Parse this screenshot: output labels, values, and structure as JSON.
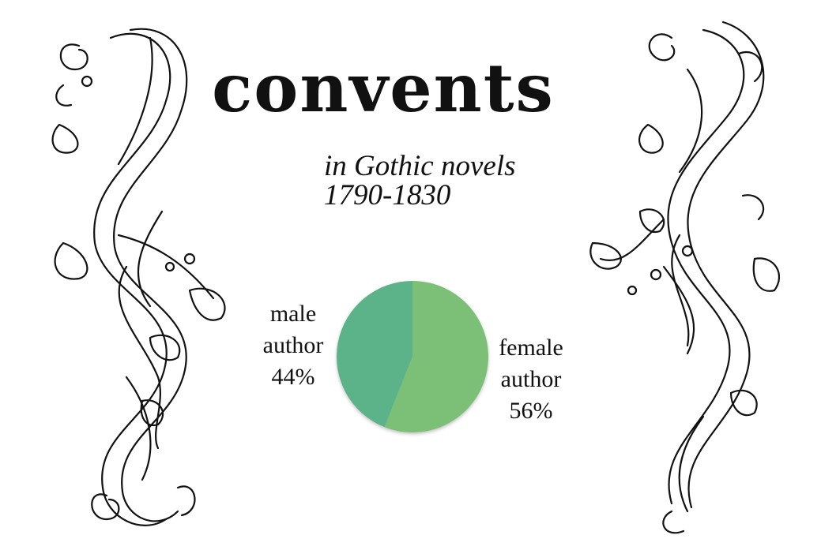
{
  "title": "convents",
  "subtitle_line1": "in Gothic novels",
  "subtitle_line2": "1790-1830",
  "labels": {
    "male_line1": "male",
    "male_line2": "author",
    "male_pct": "44%",
    "female_line1": "female",
    "female_line2": "author",
    "female_pct": "56%"
  },
  "chart_data": {
    "type": "pie",
    "title": "convents",
    "subtitle": "in Gothic novels 1790-1830",
    "legend": "none",
    "slices": [
      {
        "label": "female author",
        "value": 56,
        "color": "#7bbf77"
      },
      {
        "label": "male author",
        "value": 44,
        "color": "#5bb289"
      }
    ]
  },
  "decorations": {
    "left": "ribbon-scroll-ornament",
    "right": "ribbon-scroll-ornament"
  }
}
